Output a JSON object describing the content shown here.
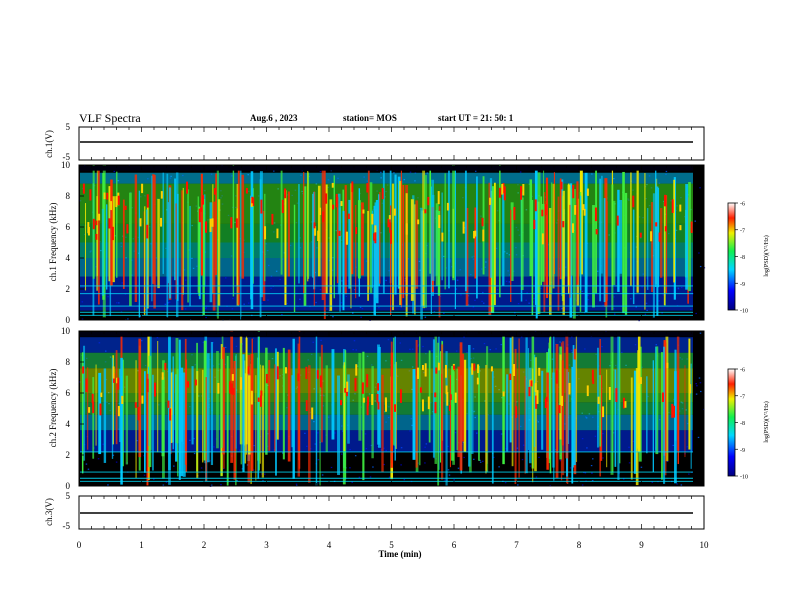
{
  "header": {
    "title": "VLF Spectra",
    "date": "Aug.6 , 2023",
    "station": "station= MOS",
    "start": "start UT = 21: 50: 1"
  },
  "chart_data": [
    {
      "type": "line",
      "panel": "ch1-waveform",
      "ylabel": "ch.1(V)",
      "ylim": [
        -5,
        5
      ],
      "yticks": [
        "5",
        "-5"
      ],
      "x": [
        0,
        10
      ],
      "values": [
        0,
        0
      ]
    },
    {
      "type": "heatmap",
      "panel": "ch1-spectrogram",
      "ylabel": "ch.1 Frequency (kHz)",
      "ylim": [
        0,
        10
      ],
      "yticks": [
        "0",
        "2",
        "4",
        "6",
        "8",
        "10"
      ],
      "xlim": [
        0,
        10
      ],
      "colorbar": {
        "label": "log(PSD)(V²/Hz)",
        "ticks": [
          "-6",
          "-7",
          "-8",
          "-9",
          "-10"
        ],
        "range": [
          -10,
          -6
        ]
      },
      "hum_lines_khz": [
        0.3,
        0.5,
        0.9,
        1.7,
        2.2
      ]
    },
    {
      "type": "heatmap",
      "panel": "ch2-spectrogram",
      "ylabel": "ch.2 Frequency (kHz)",
      "ylim": [
        0,
        10
      ],
      "yticks": [
        "0",
        "2",
        "4",
        "6",
        "8",
        "10"
      ],
      "xlim": [
        0,
        10
      ],
      "colorbar": {
        "label": "log(PSD)(V²/Hz)",
        "ticks": [
          "-6",
          "-7",
          "-8",
          "-9",
          "-10"
        ],
        "range": [
          -10,
          -6
        ]
      },
      "hum_lines_khz": [
        0.3,
        0.5,
        0.9,
        2.2
      ]
    },
    {
      "type": "line",
      "panel": "ch3-waveform",
      "ylabel": "ch.3(V)",
      "ylim": [
        -5,
        5
      ],
      "yticks": [
        "5",
        "-5"
      ],
      "x": [
        0,
        10
      ],
      "values": [
        0,
        0
      ]
    }
  ],
  "x_axis": {
    "label": "Time (min)",
    "ticks": [
      "0",
      "1",
      "2",
      "3",
      "4",
      "5",
      "6",
      "7",
      "8",
      "9",
      "10"
    ]
  }
}
